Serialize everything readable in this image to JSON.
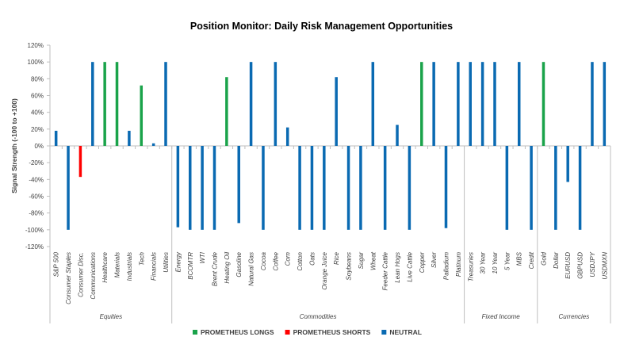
{
  "chart_data": {
    "type": "bar",
    "title": "Position Monitor: Daily Risk Management Opportunities",
    "ylabel": "Signal Strength (-100 to +100)",
    "xlabel": "",
    "ylim": [
      -120,
      120
    ],
    "yticks": [
      120,
      100,
      80,
      60,
      40,
      20,
      0,
      -20,
      -40,
      -60,
      -80,
      -100,
      -120
    ],
    "tick_suffix": "%",
    "grid": false,
    "legend_position": "bottom",
    "legend": [
      {
        "key": "long",
        "label": "PROMETHEUS LONGS",
        "color": "#1aa34a"
      },
      {
        "key": "short",
        "label": "PROMETHEUS SHORTS",
        "color": "#ff0000"
      },
      {
        "key": "neutral",
        "label": "NEUTRAL",
        "color": "#0a6ab2"
      }
    ],
    "groups": [
      {
        "name": "Equities",
        "categories": [
          {
            "label": "S&P 500",
            "value": 18,
            "signal": "neutral"
          },
          {
            "label": "Consumer Staples",
            "value": -100,
            "signal": "neutral"
          },
          {
            "label": "Consumer Disc.",
            "value": -37,
            "signal": "short"
          },
          {
            "label": "Communications",
            "value": 100,
            "signal": "neutral"
          },
          {
            "label": "Healthcare",
            "value": 100,
            "signal": "long"
          },
          {
            "label": "Materials",
            "value": 100,
            "signal": "long"
          },
          {
            "label": "Industrials",
            "value": 18,
            "signal": "neutral"
          },
          {
            "label": "Tech",
            "value": 72,
            "signal": "long"
          },
          {
            "label": "Financials",
            "value": 3,
            "signal": "neutral"
          },
          {
            "label": "Utilities",
            "value": 100,
            "signal": "neutral"
          }
        ]
      },
      {
        "name": "Commodities",
        "categories": [
          {
            "label": "Energy",
            "value": -97,
            "signal": "neutral"
          },
          {
            "label": "BCOMTR",
            "value": -100,
            "signal": "neutral"
          },
          {
            "label": "WTI",
            "value": -100,
            "signal": "neutral"
          },
          {
            "label": "Brent Crude",
            "value": -100,
            "signal": "neutral"
          },
          {
            "label": "Heating Oil",
            "value": 82,
            "signal": "long"
          },
          {
            "label": "Gasoline",
            "value": -92,
            "signal": "neutral"
          },
          {
            "label": "Natural Gas",
            "value": 100,
            "signal": "neutral"
          },
          {
            "label": "Cocoa",
            "value": -100,
            "signal": "neutral"
          },
          {
            "label": "Coffee",
            "value": 100,
            "signal": "neutral"
          },
          {
            "label": "Corn",
            "value": 22,
            "signal": "neutral"
          },
          {
            "label": "Cotton",
            "value": -100,
            "signal": "neutral"
          },
          {
            "label": "Oats",
            "value": -100,
            "signal": "neutral"
          },
          {
            "label": "Orange Juice",
            "value": -100,
            "signal": "neutral"
          },
          {
            "label": "Rice",
            "value": 82,
            "signal": "neutral"
          },
          {
            "label": "Soybeans",
            "value": -100,
            "signal": "neutral"
          },
          {
            "label": "Sugar",
            "value": -100,
            "signal": "neutral"
          },
          {
            "label": "Wheat",
            "value": 100,
            "signal": "neutral"
          },
          {
            "label": "Feeder Cattle",
            "value": -100,
            "signal": "neutral"
          },
          {
            "label": "Lean Hogs",
            "value": 25,
            "signal": "neutral"
          },
          {
            "label": "Live Cattle",
            "value": -100,
            "signal": "neutral"
          },
          {
            "label": "Copper",
            "value": 100,
            "signal": "long"
          },
          {
            "label": "Silver",
            "value": 100,
            "signal": "neutral"
          },
          {
            "label": "Palladium",
            "value": -98,
            "signal": "neutral"
          },
          {
            "label": "Platinum",
            "value": 100,
            "signal": "neutral"
          }
        ]
      },
      {
        "name": "Fixed Income",
        "categories": [
          {
            "label": "Treasuries",
            "value": 100,
            "signal": "neutral"
          },
          {
            "label": "30 Year",
            "value": 100,
            "signal": "neutral"
          },
          {
            "label": "10 Year",
            "value": 100,
            "signal": "neutral"
          },
          {
            "label": "5 Year",
            "value": -100,
            "signal": "neutral"
          },
          {
            "label": "MBS",
            "value": 100,
            "signal": "neutral"
          },
          {
            "label": "Credit",
            "value": -100,
            "signal": "neutral"
          }
        ]
      },
      {
        "name": "Currencies",
        "categories": [
          {
            "label": "Gold",
            "value": 100,
            "signal": "long"
          },
          {
            "label": "Dollar",
            "value": -100,
            "signal": "neutral"
          },
          {
            "label": "EURUSD",
            "value": -43,
            "signal": "neutral"
          },
          {
            "label": "GBPUSD",
            "value": -100,
            "signal": "neutral"
          },
          {
            "label": "USDJPY",
            "value": 100,
            "signal": "neutral"
          },
          {
            "label": "USDMXN",
            "value": 100,
            "signal": "neutral"
          }
        ]
      }
    ]
  }
}
